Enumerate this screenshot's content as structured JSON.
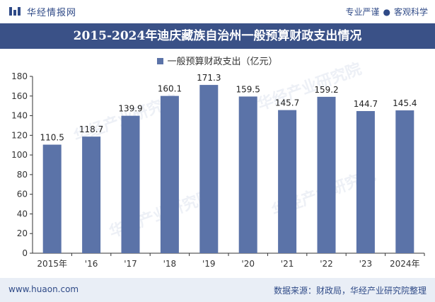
{
  "header": {
    "brand": "华经情报网",
    "tagline_left": "专业严谨",
    "tagline_dot": "●",
    "tagline_right": "客观科学"
  },
  "title": "2015-2024年迪庆藏族自治州一般预算财政支出情况",
  "legend_label": "一般预算财政支出（亿元）",
  "watermark": "华经产业研究院",
  "footer": {
    "website": "www.huaon.com",
    "source": "数据来源：财政局，华经产业研究院整理"
  },
  "colors": {
    "bar": "#5b73a8",
    "header": "#3a5187",
    "footer_bg": "#e9eef6",
    "text": "#333333"
  },
  "chart_data": {
    "type": "bar",
    "title": "2015-2024年迪庆藏族自治州一般预算财政支出情况",
    "categories": [
      "2015年",
      "'16",
      "'17",
      "'18",
      "'19",
      "'20",
      "'21",
      "'22",
      "'23",
      "2024年"
    ],
    "series": [
      {
        "name": "一般预算财政支出（亿元）",
        "values": [
          110.5,
          118.7,
          139.9,
          160.1,
          171.3,
          159.5,
          145.7,
          159.2,
          144.7,
          145.4
        ]
      }
    ],
    "ylim": [
      0,
      180
    ],
    "yticks": [
      0,
      20,
      40,
      60,
      80,
      100,
      120,
      140,
      160,
      180
    ],
    "grid": false,
    "legend_position": "top-center",
    "data_labels": true
  }
}
